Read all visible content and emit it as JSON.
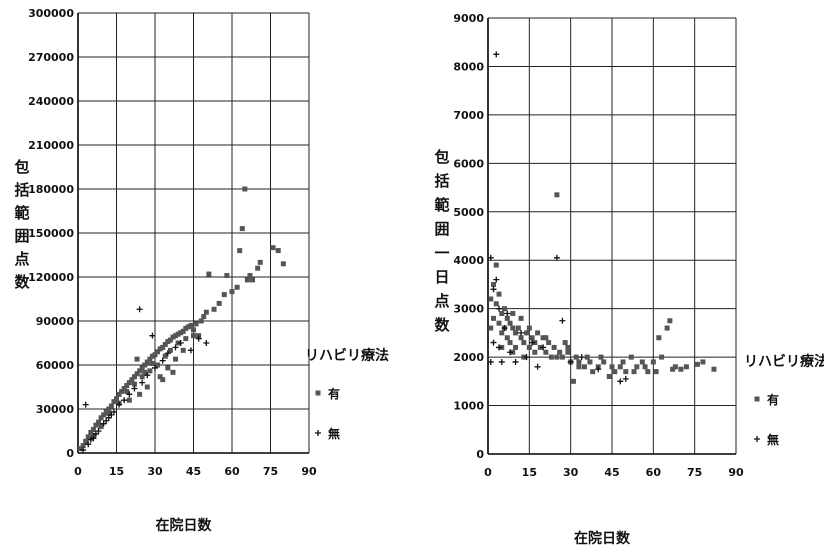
{
  "chart_data": [
    {
      "type": "scatter",
      "xlabel": "在院日数",
      "ylabel": "包括範囲点数",
      "xlim": [
        0,
        90
      ],
      "ylim": [
        0,
        300000
      ],
      "xticks": [
        "0",
        "15",
        "30",
        "45",
        "60",
        "75",
        "90"
      ],
      "yticks": [
        "0",
        "30000",
        "60000",
        "90000",
        "120000",
        "150000",
        "180000",
        "210000",
        "240000",
        "270000",
        "300000"
      ],
      "grid": true,
      "legend": {
        "title": "リハビリ療法",
        "position": "right",
        "entries": [
          {
            "marker": "square",
            "label": "有"
          },
          {
            "marker": "plus",
            "label": "無"
          }
        ]
      },
      "series": [
        {
          "name": "有",
          "marker": "square",
          "points": [
            [
              1,
              3000
            ],
            [
              2,
              5000
            ],
            [
              3,
              8000
            ],
            [
              4,
              11000
            ],
            [
              5,
              14000
            ],
            [
              6,
              16000
            ],
            [
              7,
              19000
            ],
            [
              8,
              21000
            ],
            [
              9,
              24000
            ],
            [
              10,
              26000
            ],
            [
              11,
              28000
            ],
            [
              12,
              30000
            ],
            [
              13,
              32000
            ],
            [
              14,
              35000
            ],
            [
              15,
              37000
            ],
            [
              16,
              40000
            ],
            [
              17,
              42000
            ],
            [
              18,
              44000
            ],
            [
              19,
              46000
            ],
            [
              20,
              48000
            ],
            [
              21,
              50000
            ],
            [
              22,
              52000
            ],
            [
              23,
              54000
            ],
            [
              24,
              56000
            ],
            [
              25,
              58000
            ],
            [
              26,
              60000
            ],
            [
              27,
              62000
            ],
            [
              28,
              64000
            ],
            [
              29,
              66000
            ],
            [
              30,
              67000
            ],
            [
              31,
              69000
            ],
            [
              32,
              71000
            ],
            [
              33,
              72000
            ],
            [
              34,
              74000
            ],
            [
              35,
              76000
            ],
            [
              36,
              77000
            ],
            [
              37,
              79000
            ],
            [
              38,
              80000
            ],
            [
              39,
              81000
            ],
            [
              40,
              82000
            ],
            [
              41,
              83000
            ],
            [
              42,
              85000
            ],
            [
              43,
              86000
            ],
            [
              44,
              87000
            ],
            [
              45,
              84000
            ],
            [
              46,
              88000
            ],
            [
              47,
              80000
            ],
            [
              48,
              90000
            ],
            [
              49,
              93000
            ],
            [
              50,
              96000
            ],
            [
              51,
              122000
            ],
            [
              53,
              98000
            ],
            [
              55,
              102000
            ],
            [
              57,
              108000
            ],
            [
              58,
              121000
            ],
            [
              60,
              110000
            ],
            [
              62,
              113000
            ],
            [
              63,
              138000
            ],
            [
              64,
              153000
            ],
            [
              65,
              180000
            ],
            [
              66,
              118000
            ],
            [
              67,
              121000
            ],
            [
              68,
              118000
            ],
            [
              70,
              126000
            ],
            [
              71,
              130000
            ],
            [
              76,
              140000
            ],
            [
              78,
              138000
            ],
            [
              80,
              129000
            ],
            [
              6,
              12000
            ],
            [
              9,
              18000
            ],
            [
              12,
              27000
            ],
            [
              16,
              34000
            ],
            [
              19,
              42000
            ],
            [
              22,
              47000
            ],
            [
              25,
              52000
            ],
            [
              28,
              56000
            ],
            [
              31,
              60000
            ],
            [
              34,
              66000
            ],
            [
              36,
              70000
            ],
            [
              39,
              75000
            ],
            [
              42,
              78000
            ],
            [
              45,
              80000
            ],
            [
              20,
              36000
            ],
            [
              24,
              40000
            ],
            [
              27,
              45000
            ],
            [
              32,
              52000
            ],
            [
              35,
              58000
            ],
            [
              38,
              64000
            ],
            [
              41,
              70000
            ],
            [
              23,
              64000
            ],
            [
              26,
              55000
            ],
            [
              29,
              61000
            ],
            [
              33,
              50000
            ],
            [
              37,
              55000
            ]
          ]
        },
        {
          "name": "無",
          "marker": "plus",
          "points": [
            [
              3,
              33000
            ],
            [
              4,
              6000
            ],
            [
              6,
              10000
            ],
            [
              8,
              15000
            ],
            [
              10,
              20000
            ],
            [
              12,
              24000
            ],
            [
              14,
              28000
            ],
            [
              16,
              33000
            ],
            [
              18,
              36000
            ],
            [
              20,
              40000
            ],
            [
              22,
              44000
            ],
            [
              24,
              98000
            ],
            [
              25,
              48000
            ],
            [
              27,
              53000
            ],
            [
              29,
              80000
            ],
            [
              30,
              58000
            ],
            [
              33,
              63000
            ],
            [
              35,
              68000
            ],
            [
              38,
              72000
            ],
            [
              40,
              75000
            ],
            [
              44,
              70000
            ],
            [
              47,
              78000
            ],
            [
              50,
              75000
            ],
            [
              2,
              2000
            ],
            [
              5,
              9000
            ],
            [
              7,
              13000
            ],
            [
              11,
              22000
            ],
            [
              13,
              26000
            ]
          ]
        }
      ]
    },
    {
      "type": "scatter",
      "xlabel": "在院日数",
      "ylabel": "包括範囲一日点数",
      "xlim": [
        0,
        90
      ],
      "ylim": [
        0,
        9000
      ],
      "xticks": [
        "0",
        "15",
        "30",
        "45",
        "60",
        "75",
        "90"
      ],
      "yticks": [
        "0",
        "1000",
        "2000",
        "3000",
        "4000",
        "5000",
        "6000",
        "7000",
        "8000",
        "9000"
      ],
      "grid": true,
      "legend": {
        "title": "リハビリ療法",
        "position": "right",
        "entries": [
          {
            "marker": "square",
            "label": "有"
          },
          {
            "marker": "plus",
            "label": "無"
          }
        ]
      },
      "series": [
        {
          "name": "有",
          "marker": "square",
          "points": [
            [
              1,
              2600
            ],
            [
              1,
              3200
            ],
            [
              2,
              3500
            ],
            [
              2,
              2800
            ],
            [
              3,
              3900
            ],
            [
              3,
              3100
            ],
            [
              4,
              2700
            ],
            [
              4,
              3300
            ],
            [
              5,
              2900
            ],
            [
              5,
              2500
            ],
            [
              6,
              3000
            ],
            [
              6,
              2600
            ],
            [
              7,
              2800
            ],
            [
              7,
              2400
            ],
            [
              8,
              2700
            ],
            [
              8,
              2300
            ],
            [
              9,
              2600
            ],
            [
              9,
              2900
            ],
            [
              10,
              2500
            ],
            [
              10,
              2200
            ],
            [
              11,
              2600
            ],
            [
              12,
              2400
            ],
            [
              12,
              2800
            ],
            [
              13,
              2300
            ],
            [
              14,
              2500
            ],
            [
              15,
              2200
            ],
            [
              15,
              2600
            ],
            [
              16,
              2400
            ],
            [
              17,
              2300
            ],
            [
              18,
              2500
            ],
            [
              19,
              2200
            ],
            [
              20,
              2400
            ],
            [
              21,
              2100
            ],
            [
              22,
              2300
            ],
            [
              23,
              2000
            ],
            [
              24,
              2200
            ],
            [
              25,
              5350
            ],
            [
              26,
              2100
            ],
            [
              27,
              2000
            ],
            [
              28,
              2300
            ],
            [
              29,
              2100
            ],
            [
              30,
              1900
            ],
            [
              31,
              1500
            ],
            [
              32,
              2000
            ],
            [
              33,
              1900
            ],
            [
              35,
              1800
            ],
            [
              36,
              2000
            ],
            [
              38,
              1700
            ],
            [
              40,
              1800
            ],
            [
              42,
              1900
            ],
            [
              44,
              1600
            ],
            [
              46,
              1700
            ],
            [
              48,
              1800
            ],
            [
              50,
              1700
            ],
            [
              52,
              2000
            ],
            [
              54,
              1800
            ],
            [
              56,
              1900
            ],
            [
              58,
              1700
            ],
            [
              60,
              1900
            ],
            [
              62,
              2400
            ],
            [
              63,
              2000
            ],
            [
              65,
              2600
            ],
            [
              66,
              2750
            ],
            [
              67,
              1750
            ],
            [
              68,
              1800
            ],
            [
              70,
              1750
            ],
            [
              72,
              1800
            ],
            [
              76,
              1850
            ],
            [
              78,
              1900
            ],
            [
              82,
              1750
            ],
            [
              5,
              2200
            ],
            [
              9,
              2100
            ],
            [
              13,
              2000
            ],
            [
              17,
              2100
            ],
            [
              21,
              2400
            ],
            [
              25,
              2000
            ],
            [
              29,
              2200
            ],
            [
              33,
              1800
            ],
            [
              37,
              1900
            ],
            [
              41,
              2000
            ],
            [
              45,
              1800
            ],
            [
              49,
              1900
            ],
            [
              53,
              1700
            ],
            [
              57,
              1800
            ],
            [
              61,
              1700
            ]
          ]
        },
        {
          "name": "無",
          "marker": "plus",
          "points": [
            [
              1,
              4050
            ],
            [
              2,
              3400
            ],
            [
              3,
              8250
            ],
            [
              3,
              3600
            ],
            [
              4,
              2200
            ],
            [
              5,
              1900
            ],
            [
              6,
              2600
            ],
            [
              7,
              2900
            ],
            [
              8,
              2100
            ],
            [
              10,
              1900
            ],
            [
              12,
              2500
            ],
            [
              14,
              2000
            ],
            [
              16,
              2300
            ],
            [
              18,
              1800
            ],
            [
              20,
              2200
            ],
            [
              25,
              4050
            ],
            [
              27,
              2750
            ],
            [
              30,
              1900
            ],
            [
              34,
              2000
            ],
            [
              40,
              1750
            ],
            [
              48,
              1500
            ],
            [
              50,
              1550
            ],
            [
              1,
              1900
            ],
            [
              2,
              2300
            ],
            [
              4,
              3000
            ]
          ]
        }
      ]
    }
  ]
}
